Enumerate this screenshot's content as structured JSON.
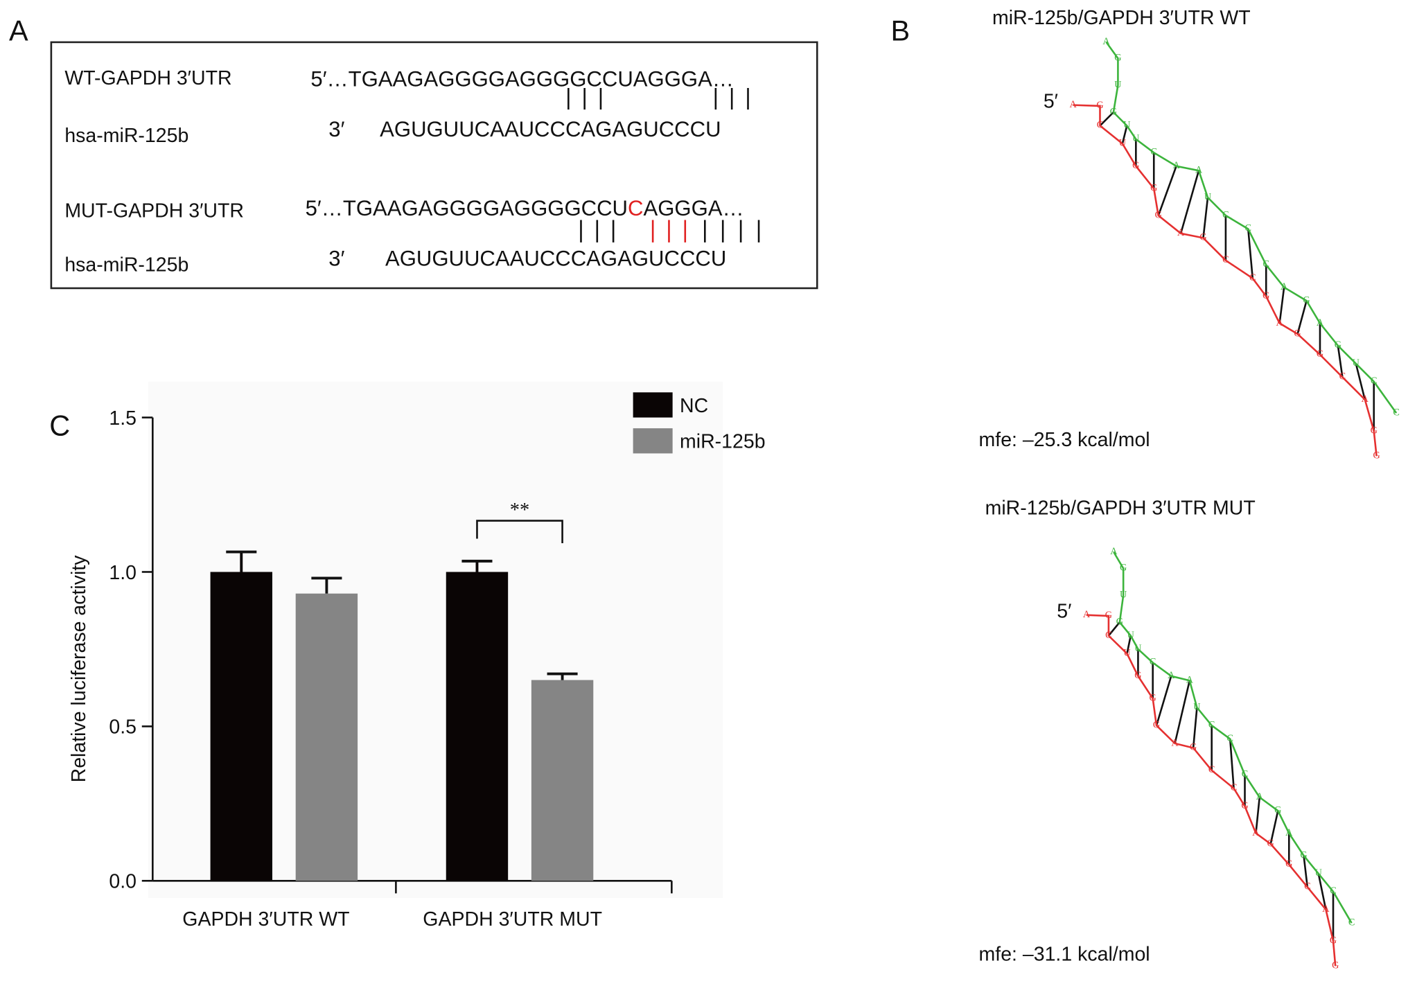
{
  "panel_a": {
    "label": "A",
    "wt": {
      "target_label": "WT-GAPDH 3′UTR",
      "target_seq": "5′…TGAAGAGGGGAGGGGCCUAGGGA…",
      "mirna_label": "hsa-miR-125b",
      "mirna_end": "3′",
      "mirna_seq": "AGUGUUCAAUCCCAGAGUCCCU"
    },
    "mut": {
      "target_label": "MUT-GAPDH 3′UTR",
      "target_seq_start": "5′…TGAAGAGGGGAGGGGCCU",
      "target_seq_mutated": "C",
      "target_seq_end": "AGGGA…",
      "mirna_label": "hsa-miR-125b",
      "mirna_end": "3′",
      "mirna_seq": "AGUGUUCAAUCCCAGAGUCCCU"
    }
  },
  "panel_b": {
    "label": "B",
    "wt": {
      "title": "miR-125b/GAPDH 3′UTR WT",
      "five_prime": "5′",
      "target_strand": "AGCUGGGAGCCGAGGCAGG",
      "mirna_strand": "AGUGUUCAAUCCCAGAGUCC",
      "mfe": "mfe: –25.3 kcal/mol"
    },
    "mut": {
      "title": "miR-125b/GAPDH 3′UTR MUT",
      "five_prime": "5′",
      "target_strand": "AGCUGGGAGCCGAGGCAGG",
      "mirna_strand": "AGUGUUCAAUCCCAGAGUCC",
      "mfe": "mfe: –31.1 kcal/mol"
    }
  },
  "chart_data": {
    "type": "bar",
    "panel_label": "C",
    "y_label": "Relative luciferase activity",
    "categories": [
      "GAPDH 3′UTR WT",
      "GAPDH 3′UTR MUT"
    ],
    "series": [
      {
        "name": "NC",
        "color": "#0a0505",
        "values": [
          1.0,
          1.0
        ],
        "errors": [
          0.065,
          0.035
        ]
      },
      {
        "name": "miR-125b",
        "color": "#858585",
        "values": [
          0.93,
          0.65
        ],
        "errors": [
          0.05,
          0.02
        ]
      }
    ],
    "ylim": [
      0,
      1.5
    ],
    "yticks": [
      {
        "value": 0,
        "label": "0.0"
      },
      0.5,
      {
        "value": 1,
        "label": "1.0"
      },
      1.5
    ],
    "annotation": "**",
    "legend": "top-right"
  }
}
